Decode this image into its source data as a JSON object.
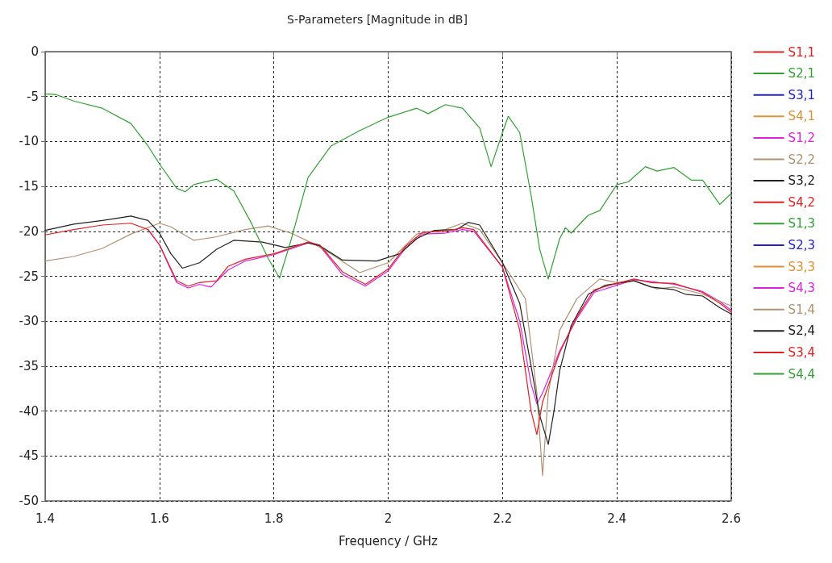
{
  "chart_data": {
    "type": "line",
    "title": "S-Parameters [Magnitude in dB]",
    "xlabel": "Frequency / GHz",
    "xlim": [
      1.4,
      2.6
    ],
    "xticks": [
      1.4,
      1.6,
      1.8,
      2,
      2.2,
      2.4,
      2.6
    ],
    "ylim": [
      -50,
      0
    ],
    "yticks": [
      -50,
      -45,
      -40,
      -35,
      -30,
      -25,
      -20,
      -15,
      -10,
      -5,
      0
    ],
    "grid": true,
    "legend": "right",
    "marker": "none",
    "line_style": "solid",
    "series": [
      {
        "name": "S1,1",
        "color": "#e02020",
        "values": [
          null
        ]
      },
      {
        "name": "S2,1",
        "color": "#30a030",
        "values": [
          null
        ]
      },
      {
        "name": "S3,1",
        "color": "#2020d0",
        "values": [
          null
        ]
      },
      {
        "name": "S4,1",
        "color": "#e09030",
        "values": [
          null
        ]
      },
      {
        "name": "S1,2",
        "color": "#e020e0",
        "values": [
          null
        ]
      },
      {
        "name": "S2,2",
        "color": "#b09070",
        "values": [
          null
        ]
      },
      {
        "name": "S3,2",
        "color": "#202020",
        "values": [
          null
        ]
      },
      {
        "name": "S4,2",
        "color": "#e02020",
        "values": [
          null
        ]
      },
      {
        "name": "S1,3",
        "color": "#30a030",
        "values": [
          null
        ]
      },
      {
        "name": "S2,3",
        "color": "#2020d0",
        "values": [
          null
        ]
      },
      {
        "name": "S3,3",
        "color": "#e09030",
        "values": [
          null
        ]
      },
      {
        "name": "S4,3",
        "color": "#e020e0",
        "x": [
          1.58,
          1.6,
          1.63,
          1.65,
          1.67,
          1.69,
          1.72,
          1.75,
          1.8,
          1.86,
          1.88,
          1.92,
          1.96,
          2.0,
          2.03,
          2.06,
          2.1,
          2.13,
          2.15,
          2.2,
          2.23,
          2.25,
          2.26,
          2.27,
          2.3,
          2.33,
          2.36,
          2.4,
          2.43,
          2.46,
          2.5,
          2.55,
          2.58,
          2.6
        ],
        "values": [
          -19.8,
          -21.5,
          -25.7,
          -26.3,
          -25.9,
          -26.2,
          -24.3,
          -23.3,
          -22.6,
          -21.3,
          -21.6,
          -24.8,
          -26.1,
          -24.4,
          -21.9,
          -20.3,
          -20.2,
          -19.8,
          -20,
          -24,
          -30,
          -37,
          -39.2,
          -38,
          -33.3,
          -29.7,
          -26.8,
          -26,
          -25.4,
          -25.6,
          -25.9,
          -26.7,
          -27.8,
          -28.8
        ]
      },
      {
        "name": "S1,4",
        "color": "#b09070",
        "x": [
          1.4,
          1.45,
          1.5,
          1.55,
          1.6,
          1.62,
          1.66,
          1.7,
          1.75,
          1.79,
          1.83,
          1.87,
          1.9,
          1.95,
          2.0,
          2.05,
          2.1,
          2.13,
          2.16,
          2.2,
          2.24,
          2.26,
          2.27,
          2.28,
          2.3,
          2.33,
          2.37,
          2.4,
          2.43,
          2.47,
          2.5,
          2.55,
          2.6
        ],
        "values": [
          -23.3,
          -22.8,
          -21.9,
          -20.3,
          -19.1,
          -19.5,
          -21,
          -20.6,
          -19.8,
          -19.4,
          -20.2,
          -21.4,
          -22.5,
          -24.6,
          -23.5,
          -20.3,
          -19.8,
          -19.1,
          -19.8,
          -23.5,
          -27.5,
          -38,
          -47.2,
          -38,
          -31,
          -27.5,
          -25.3,
          -25.7,
          -25.5,
          -26.4,
          -26.2,
          -27,
          -28.3
        ]
      },
      {
        "name": "S2,4",
        "color": "#202020",
        "x": [
          1.4,
          1.45,
          1.5,
          1.55,
          1.58,
          1.6,
          1.62,
          1.64,
          1.67,
          1.7,
          1.73,
          1.78,
          1.82,
          1.86,
          1.88,
          1.92,
          1.98,
          2.02,
          2.05,
          2.08,
          2.12,
          2.14,
          2.16,
          2.2,
          2.23,
          2.25,
          2.265,
          2.28,
          2.29,
          2.3,
          2.32,
          2.35,
          2.38,
          2.4,
          2.43,
          2.46,
          2.5,
          2.52,
          2.55,
          2.58,
          2.6
        ],
        "values": [
          -19.9,
          -19.2,
          -18.8,
          -18.3,
          -18.8,
          -20.2,
          -22.5,
          -24.1,
          -23.5,
          -22,
          -21,
          -21.2,
          -21.8,
          -21.3,
          -21.6,
          -23.2,
          -23.3,
          -22.5,
          -20.8,
          -19.9,
          -19.8,
          -19,
          -19.3,
          -23.5,
          -28,
          -35,
          -40.5,
          -43.7,
          -40,
          -35.5,
          -30.5,
          -27,
          -26,
          -25.8,
          -25.5,
          -26.2,
          -26.5,
          -27,
          -27.2,
          -28.5,
          -29.2
        ]
      },
      {
        "name": "S3,4",
        "color": "#e02020",
        "x": [
          1.4,
          1.45,
          1.5,
          1.55,
          1.58,
          1.6,
          1.63,
          1.65,
          1.67,
          1.7,
          1.72,
          1.75,
          1.8,
          1.86,
          1.88,
          1.92,
          1.96,
          2.0,
          2.03,
          2.06,
          2.1,
          2.13,
          2.15,
          2.2,
          2.23,
          2.25,
          2.26,
          2.27,
          2.3,
          2.33,
          2.36,
          2.4,
          2.43,
          2.46,
          2.5,
          2.55,
          2.58,
          2.6
        ],
        "values": [
          -20.4,
          -19.8,
          -19.3,
          -19.1,
          -19.8,
          -21.5,
          -25.5,
          -26.1,
          -25.7,
          -25.5,
          -23.9,
          -23.1,
          -22.5,
          -21.2,
          -21.5,
          -24.5,
          -25.9,
          -24.2,
          -21.7,
          -20.1,
          -20,
          -19.6,
          -19.8,
          -24,
          -31,
          -40,
          -42.6,
          -39,
          -33.5,
          -29.5,
          -26.5,
          -25.8,
          -25.3,
          -25.7,
          -25.8,
          -26.8,
          -28,
          -29
        ]
      },
      {
        "name": "S4,4",
        "color": "#30a030",
        "x": [
          1.4,
          1.42,
          1.45,
          1.5,
          1.55,
          1.58,
          1.6,
          1.63,
          1.645,
          1.66,
          1.7,
          1.73,
          1.76,
          1.79,
          1.81,
          1.83,
          1.86,
          1.9,
          1.95,
          2.0,
          2.05,
          2.07,
          2.1,
          2.13,
          2.16,
          2.18,
          2.2,
          2.21,
          2.23,
          2.25,
          2.265,
          2.28,
          2.3,
          2.31,
          2.32,
          2.35,
          2.37,
          2.4,
          2.42,
          2.45,
          2.47,
          2.5,
          2.53,
          2.55,
          2.58,
          2.6
        ],
        "values": [
          -4.7,
          -4.8,
          -5.5,
          -6.3,
          -8,
          -10.5,
          -12.5,
          -15.2,
          -15.6,
          -14.8,
          -14.2,
          -15.5,
          -19,
          -23,
          -25.2,
          -21,
          -14,
          -10.5,
          -8.8,
          -7.3,
          -6.3,
          -6.9,
          -5.9,
          -6.3,
          -8.5,
          -12.8,
          -9,
          -7.2,
          -9,
          -16,
          -22,
          -25.3,
          -20.8,
          -19.6,
          -20.2,
          -18.2,
          -17.7,
          -14.8,
          -14.5,
          -12.8,
          -13.3,
          -12.9,
          -14.3,
          -14.3,
          -17,
          -15.8
        ]
      }
    ]
  }
}
